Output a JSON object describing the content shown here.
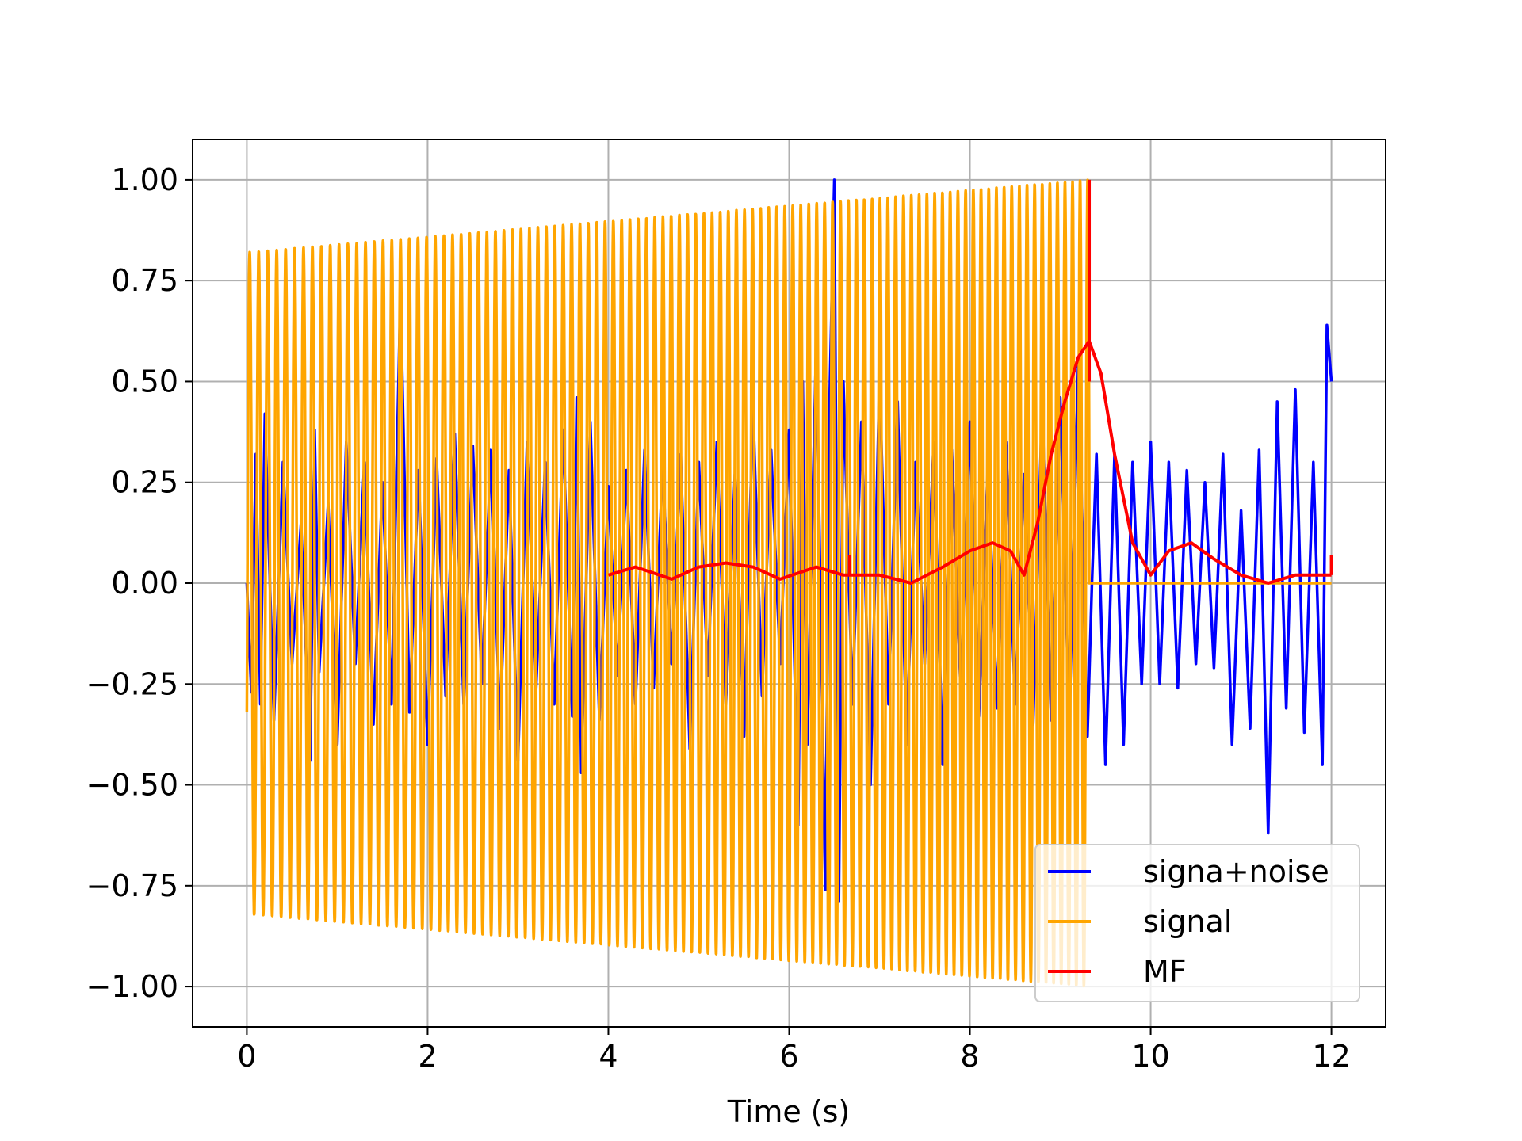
{
  "chart_data": {
    "type": "line",
    "title": "",
    "xlabel": "Time (s)",
    "ylabel": "",
    "xlim": [
      -0.6,
      12.6
    ],
    "ylim": [
      -1.1,
      1.1
    ],
    "xticks": [
      0,
      2,
      4,
      6,
      8,
      10,
      12
    ],
    "xtick_labels": [
      "0",
      "2",
      "4",
      "6",
      "8",
      "10",
      "12"
    ],
    "yticks": [
      -1.0,
      -0.75,
      -0.5,
      -0.25,
      0.0,
      0.25,
      0.5,
      0.75,
      1.0
    ],
    "ytick_labels": [
      "−1.00",
      "−0.75",
      "−0.50",
      "−0.25",
      "0.00",
      "0.25",
      "0.50",
      "0.75",
      "1.00"
    ],
    "grid": true,
    "legend_position": "lower-right",
    "colors": {
      "signal_noise": "#0000ff",
      "signal": "#ffa500",
      "mf": "#ff0000"
    },
    "series": [
      {
        "name": "signa+noise",
        "color": "#0000ff",
        "x": [
          0.0,
          0.05,
          0.1,
          0.15,
          0.2,
          0.3,
          0.4,
          0.5,
          0.6,
          0.7,
          0.75,
          0.8,
          0.9,
          1.0,
          1.1,
          1.2,
          1.3,
          1.4,
          1.5,
          1.6,
          1.7,
          1.8,
          1.9,
          2.0,
          2.1,
          2.2,
          2.3,
          2.4,
          2.5,
          2.6,
          2.7,
          2.8,
          2.9,
          3.0,
          3.1,
          3.2,
          3.3,
          3.4,
          3.5,
          3.6,
          3.65,
          3.7,
          3.8,
          3.9,
          4.0,
          4.1,
          4.2,
          4.3,
          4.4,
          4.5,
          4.6,
          4.7,
          4.8,
          4.9,
          5.0,
          5.1,
          5.2,
          5.3,
          5.4,
          5.5,
          5.6,
          5.7,
          5.8,
          5.9,
          6.0,
          6.1,
          6.15,
          6.2,
          6.3,
          6.4,
          6.45,
          6.5,
          6.55,
          6.6,
          6.7,
          6.8,
          6.9,
          7.0,
          7.1,
          7.2,
          7.3,
          7.4,
          7.5,
          7.6,
          7.7,
          7.8,
          7.9,
          8.0,
          8.1,
          8.2,
          8.3,
          8.4,
          8.5,
          8.6,
          8.7,
          8.8,
          8.9,
          9.0,
          9.1,
          9.2,
          9.3,
          9.35,
          9.4,
          9.5,
          9.6,
          9.7,
          9.8,
          9.9,
          10.0,
          10.1,
          10.2,
          10.3,
          10.4,
          10.5,
          10.6,
          10.7,
          10.8,
          10.9,
          11.0,
          11.1,
          11.2,
          11.3,
          11.4,
          11.5,
          11.6,
          11.7,
          11.8,
          11.9,
          11.95,
          12.0
        ],
        "y": [
          0.0,
          -0.27,
          0.32,
          -0.3,
          0.42,
          -0.34,
          0.3,
          -0.2,
          0.15,
          -0.44,
          0.38,
          -0.22,
          0.2,
          -0.4,
          0.35,
          -0.2,
          0.3,
          -0.35,
          0.25,
          -0.3,
          0.72,
          -0.32,
          0.28,
          -0.4,
          0.31,
          -0.28,
          0.37,
          -0.3,
          0.34,
          -0.25,
          0.33,
          -0.36,
          0.28,
          -0.44,
          0.35,
          -0.26,
          0.3,
          -0.3,
          0.38,
          -0.33,
          0.46,
          -0.47,
          0.4,
          -0.34,
          0.24,
          -0.23,
          0.28,
          -0.3,
          0.33,
          -0.26,
          0.29,
          -0.2,
          0.32,
          -0.41,
          0.3,
          -0.23,
          0.35,
          -0.3,
          0.27,
          -0.38,
          0.44,
          -0.28,
          0.33,
          -0.2,
          0.38,
          -0.6,
          0.5,
          -0.4,
          0.6,
          -0.76,
          0.48,
          1.0,
          -0.79,
          0.5,
          -0.3,
          0.4,
          -0.5,
          0.52,
          -0.3,
          0.45,
          -0.4,
          0.3,
          -0.2,
          0.35,
          -0.45,
          0.33,
          -0.28,
          0.4,
          -0.33,
          0.3,
          -0.31,
          0.35,
          -0.3,
          0.27,
          -0.35,
          0.45,
          -0.34,
          0.46,
          -0.35,
          0.55,
          -0.38,
          0.0,
          0.32,
          -0.45,
          0.32,
          -0.4,
          0.3,
          -0.25,
          0.35,
          -0.25,
          0.3,
          -0.26,
          0.28,
          -0.2,
          0.25,
          -0.21,
          0.32,
          -0.4,
          0.18,
          -0.36,
          0.33,
          -0.62,
          0.45,
          -0.31,
          0.48,
          -0.37,
          0.3,
          -0.45,
          0.64,
          0.5
        ]
      },
      {
        "name": "signal",
        "color": "#ffa500",
        "chirp": {
          "t_start": 0.0,
          "t_end": 9.32,
          "freq_start_hz": 10.0,
          "freq_end_hz": 12.0,
          "amp_start": 0.82,
          "amp_end": 1.0
        },
        "after_end_value": 0.0
      },
      {
        "name": "MF",
        "color": "#ff0000",
        "x": [
          4.0,
          4.3,
          4.7,
          5.0,
          5.3,
          5.6,
          5.9,
          6.3,
          6.6,
          6.7,
          7.0,
          7.35,
          7.7,
          8.0,
          8.25,
          8.45,
          8.6,
          8.75,
          8.9,
          9.05,
          9.2,
          9.32,
          9.45,
          9.6,
          9.8,
          10.0,
          10.2,
          10.45,
          10.7,
          11.0,
          11.3,
          11.6,
          12.0
        ],
        "y": [
          0.02,
          0.04,
          0.01,
          0.04,
          0.05,
          0.04,
          0.01,
          0.04,
          0.02,
          0.02,
          0.02,
          0.0,
          0.04,
          0.08,
          0.1,
          0.08,
          0.02,
          0.15,
          0.32,
          0.45,
          0.56,
          0.6,
          0.52,
          0.32,
          0.1,
          0.02,
          0.08,
          0.1,
          0.06,
          0.02,
          0.0,
          0.02,
          0.02
        ],
        "spikes": [
          {
            "x": 9.32,
            "y_from": 0.5,
            "y_to": 1.0
          },
          {
            "x": 6.67,
            "y_from": 0.02,
            "y_to": 0.07
          },
          {
            "x": 12.0,
            "y_from": 0.02,
            "y_to": 0.07
          }
        ]
      }
    ]
  }
}
